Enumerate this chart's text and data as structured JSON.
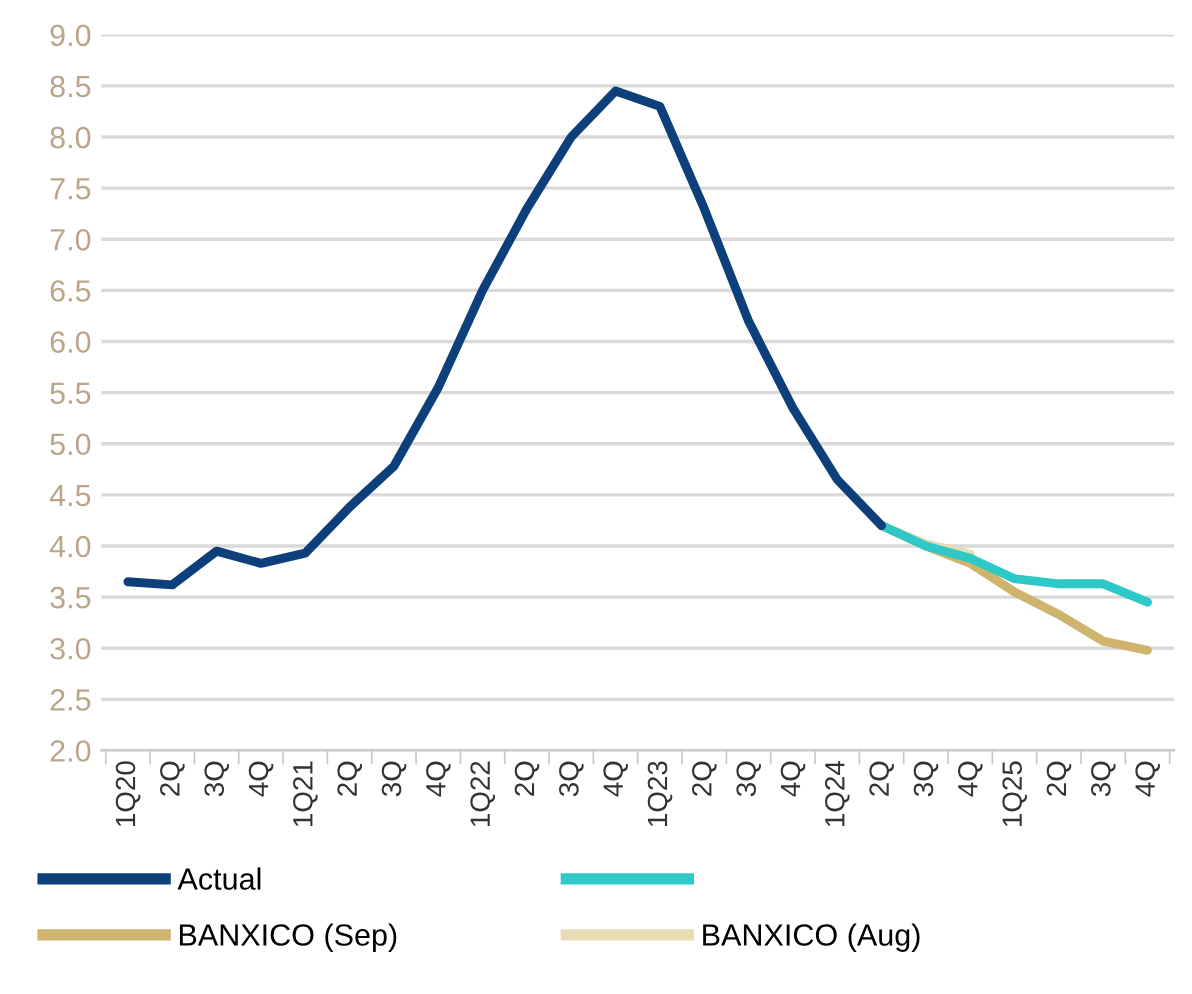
{
  "chart_data": {
    "type": "line",
    "categories": [
      "1Q20",
      "2Q",
      "3Q",
      "4Q",
      "1Q21",
      "2Q",
      "3Q",
      "4Q",
      "1Q22",
      "2Q",
      "3Q",
      "4Q",
      "1Q23",
      "2Q",
      "3Q",
      "4Q",
      "1Q24",
      "2Q",
      "3Q",
      "4Q",
      "1Q25",
      "2Q",
      "3Q",
      "4Q"
    ],
    "series": [
      {
        "name": "Actual",
        "color": "#0d3f7a",
        "values": [
          3.65,
          3.62,
          3.95,
          3.83,
          3.93,
          4.38,
          4.78,
          5.55,
          6.5,
          7.3,
          8.0,
          8.45,
          8.3,
          7.3,
          6.2,
          5.35,
          4.65,
          4.2,
          null,
          null,
          null,
          null,
          null,
          null
        ]
      },
      {
        "color": "#2ec8c8",
        "values": [
          null,
          null,
          null,
          null,
          null,
          null,
          null,
          null,
          null,
          null,
          null,
          null,
          null,
          null,
          null,
          null,
          null,
          4.2,
          4.0,
          3.88,
          3.68,
          3.63,
          3.63,
          3.45
        ]
      },
      {
        "name": "BANXICO (Sep)",
        "color": "#cfb46e",
        "values": [
          null,
          null,
          null,
          null,
          null,
          null,
          null,
          null,
          null,
          null,
          null,
          null,
          null,
          null,
          null,
          null,
          null,
          4.2,
          4.0,
          3.83,
          3.55,
          3.33,
          3.07,
          2.98
        ]
      },
      {
        "name": "BANXICO (Aug)",
        "color": "#e8dcb5",
        "values": [
          null,
          null,
          null,
          null,
          null,
          null,
          null,
          null,
          null,
          null,
          null,
          null,
          null,
          null,
          null,
          null,
          null,
          4.2,
          4.02,
          3.92,
          null,
          null,
          null,
          null
        ]
      }
    ],
    "ylim": [
      2.0,
      9.0
    ],
    "yticks": [
      {
        "value": 2.0,
        "label": "2.0"
      },
      {
        "value": 2.5,
        "label": "2.5"
      },
      {
        "value": 3.0,
        "label": "3.0"
      },
      {
        "value": 3.5,
        "label": "3.5"
      },
      {
        "value": 4.0,
        "label": "4.0"
      },
      {
        "value": 4.5,
        "label": "4.5"
      },
      {
        "value": 5.0,
        "label": "5.0"
      },
      {
        "value": 5.5,
        "label": "5.5"
      },
      {
        "value": 6.0,
        "label": "6.0"
      },
      {
        "value": 6.5,
        "label": "6.5"
      },
      {
        "value": 7.0,
        "label": "7.0"
      },
      {
        "value": 7.5,
        "label": "7.5"
      },
      {
        "value": 8.0,
        "label": "8.0"
      },
      {
        "value": 8.5,
        "label": "8.5"
      },
      {
        "value": 9.0,
        "label": "9.0"
      }
    ],
    "grid": "y",
    "legend": "bottom",
    "marker": "none",
    "line_style": "solid"
  }
}
